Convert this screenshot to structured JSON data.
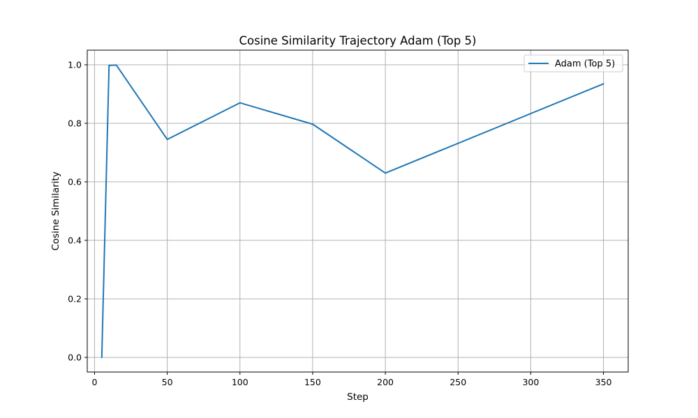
{
  "chart_data": {
    "type": "line",
    "title": "Cosine Similarity Trajectory Adam (Top 5)",
    "xlabel": "Step",
    "ylabel": "Cosine Similarity",
    "xlim": [
      -5,
      367
    ],
    "ylim": [
      -0.05,
      1.05
    ],
    "xticks": [
      0,
      50,
      100,
      150,
      200,
      250,
      300,
      350
    ],
    "yticks": [
      0.0,
      0.2,
      0.4,
      0.6,
      0.8,
      1.0
    ],
    "xtick_labels": [
      "0",
      "50",
      "100",
      "150",
      "200",
      "250",
      "300",
      "350"
    ],
    "ytick_labels": [
      "0.0",
      "0.2",
      "0.4",
      "0.6",
      "0.8",
      "1.0"
    ],
    "grid": true,
    "legend_position": "top-right",
    "series": [
      {
        "name": "Adam (Top 5)",
        "color": "#1f77b4",
        "x": [
          5,
          10,
          15,
          50,
          100,
          150,
          200,
          350
        ],
        "y": [
          0.0,
          0.998,
          0.999,
          0.745,
          0.87,
          0.797,
          0.63,
          0.935
        ]
      }
    ]
  }
}
